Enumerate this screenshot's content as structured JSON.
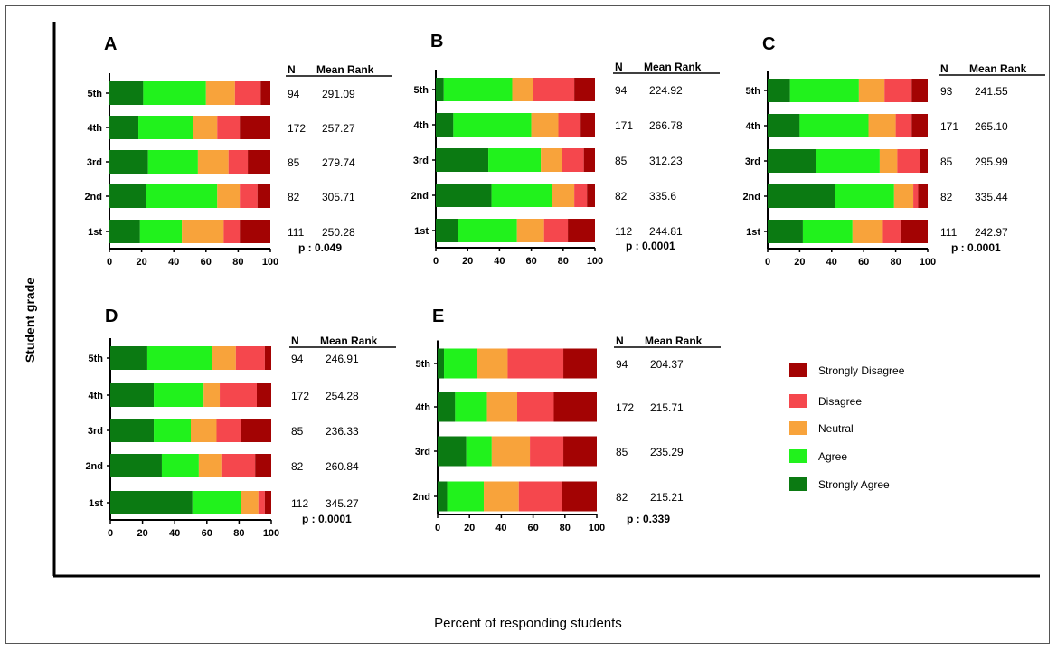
{
  "figure": {
    "ylabel": "Student grade",
    "xlabel": "Percent of responding students"
  },
  "colors": {
    "Strongly Agree": "#0b7a12",
    "Agree": "#21f21c",
    "Neutral": "#f8a33b",
    "Disagree": "#f5474d",
    "Strongly Disagree": "#a30303"
  },
  "legend": [
    "Strongly Disagree",
    "Disagree",
    "Neutral",
    "Agree",
    "Strongly Agree"
  ],
  "legend_labels": [
    "Strongly Disagree",
    "Disagree",
    "Neutral",
    "Agree",
    "Strongly Agree"
  ],
  "table_header": {
    "n": "N",
    "mean_rank": "Mean Rank"
  },
  "chart_data": [
    {
      "type": "bar",
      "orientation": "horizontal",
      "stacked": true,
      "letter": "A",
      "xlim": [
        0,
        100
      ],
      "xticks": [
        "0",
        "20",
        "40",
        "60",
        "80",
        "100"
      ],
      "categories": [
        "5th",
        "4th",
        "3rd",
        "2nd",
        "1st"
      ],
      "series": [
        {
          "name": "Strongly Agree",
          "values": [
            21,
            18,
            24,
            23,
            19
          ]
        },
        {
          "name": "Agree",
          "values": [
            39,
            34,
            31,
            44,
            26
          ]
        },
        {
          "name": "Neutral",
          "values": [
            18,
            15,
            19,
            14,
            26
          ]
        },
        {
          "name": "Disagree",
          "values": [
            16,
            14,
            12,
            11,
            10
          ]
        },
        {
          "name": "Strongly Disagree",
          "values": [
            6,
            19,
            14,
            8,
            19
          ]
        }
      ],
      "n": [
        "94",
        "172",
        "85",
        "82",
        "111"
      ],
      "mean_rank": [
        "291.09",
        "257.27",
        "279.74",
        "305.71",
        "250.28"
      ],
      "p_value": "p : 0.049"
    },
    {
      "type": "bar",
      "orientation": "horizontal",
      "stacked": true,
      "letter": "B",
      "xlim": [
        0,
        100
      ],
      "xticks": [
        "0",
        "20",
        "40",
        "60",
        "80",
        "100"
      ],
      "categories": [
        "5th",
        "4th",
        "3rd",
        "2nd",
        "1st"
      ],
      "series": [
        {
          "name": "Strongly Agree",
          "values": [
            5,
            11,
            33,
            35,
            14
          ]
        },
        {
          "name": "Agree",
          "values": [
            43,
            49,
            33,
            38,
            37
          ]
        },
        {
          "name": "Neutral",
          "values": [
            13,
            17,
            13,
            14,
            17
          ]
        },
        {
          "name": "Disagree",
          "values": [
            26,
            14,
            14,
            8,
            15
          ]
        },
        {
          "name": "Strongly Disagree",
          "values": [
            13,
            9,
            7,
            5,
            17
          ]
        }
      ],
      "n": [
        "94",
        "171",
        "85",
        "82",
        "112"
      ],
      "mean_rank": [
        "224.92",
        "266.78",
        "312.23",
        "335.6",
        "244.81"
      ],
      "p_value": "p : 0.0001"
    },
    {
      "type": "bar",
      "orientation": "horizontal",
      "stacked": true,
      "letter": "C",
      "xlim": [
        0,
        100
      ],
      "xticks": [
        "0",
        "20",
        "40",
        "60",
        "80",
        "100"
      ],
      "categories": [
        "5th",
        "4th",
        "3rd",
        "2nd",
        "1st"
      ],
      "series": [
        {
          "name": "Strongly Agree",
          "values": [
            14,
            20,
            30,
            42,
            22
          ]
        },
        {
          "name": "Agree",
          "values": [
            43,
            43,
            40,
            37,
            31
          ]
        },
        {
          "name": "Neutral",
          "values": [
            16,
            17,
            11,
            12,
            19
          ]
        },
        {
          "name": "Disagree",
          "values": [
            17,
            10,
            14,
            3,
            11
          ]
        },
        {
          "name": "Strongly Disagree",
          "values": [
            10,
            10,
            5,
            6,
            17
          ]
        }
      ],
      "n": [
        "93",
        "171",
        "85",
        "82",
        "111"
      ],
      "mean_rank": [
        "241.55",
        "265.10",
        "295.99",
        "335.44",
        "242.97"
      ],
      "p_value": "p : 0.0001"
    },
    {
      "type": "bar",
      "orientation": "horizontal",
      "stacked": true,
      "letter": "D",
      "xlim": [
        0,
        100
      ],
      "xticks": [
        "0",
        "20",
        "40",
        "60",
        "80",
        "100"
      ],
      "categories": [
        "5th",
        "4th",
        "3rd",
        "2nd",
        "1st"
      ],
      "series": [
        {
          "name": "Strongly Agree",
          "values": [
            23,
            27,
            27,
            32,
            51
          ]
        },
        {
          "name": "Agree",
          "values": [
            40,
            31,
            23,
            23,
            30
          ]
        },
        {
          "name": "Neutral",
          "values": [
            15,
            10,
            16,
            14,
            11
          ]
        },
        {
          "name": "Disagree",
          "values": [
            18,
            23,
            15,
            21,
            4
          ]
        },
        {
          "name": "Strongly Disagree",
          "values": [
            4,
            9,
            19,
            10,
            4
          ]
        }
      ],
      "n": [
        "94",
        "172",
        "85",
        "82",
        "112"
      ],
      "mean_rank": [
        "246.91",
        "254.28",
        "236.33",
        "260.84",
        "345.27"
      ],
      "p_value": "p : 0.0001"
    },
    {
      "type": "bar",
      "orientation": "horizontal",
      "stacked": true,
      "letter": "E",
      "xlim": [
        0,
        100
      ],
      "xticks": [
        "0",
        "20",
        "40",
        "60",
        "80",
        "100"
      ],
      "categories": [
        "5th",
        "4th",
        "3rd",
        "2nd"
      ],
      "series": [
        {
          "name": "Strongly Agree",
          "values": [
            4,
            11,
            18,
            6
          ]
        },
        {
          "name": "Agree",
          "values": [
            21,
            20,
            16,
            23
          ]
        },
        {
          "name": "Neutral",
          "values": [
            19,
            19,
            24,
            22
          ]
        },
        {
          "name": "Disagree",
          "values": [
            35,
            23,
            21,
            27
          ]
        },
        {
          "name": "Strongly Disagree",
          "values": [
            21,
            27,
            21,
            22
          ]
        }
      ],
      "n": [
        "94",
        "172",
        "85",
        "82"
      ],
      "mean_rank": [
        "204.37",
        "215.71",
        "235.29",
        "215.21"
      ],
      "p_value": "p : 0.339"
    }
  ]
}
